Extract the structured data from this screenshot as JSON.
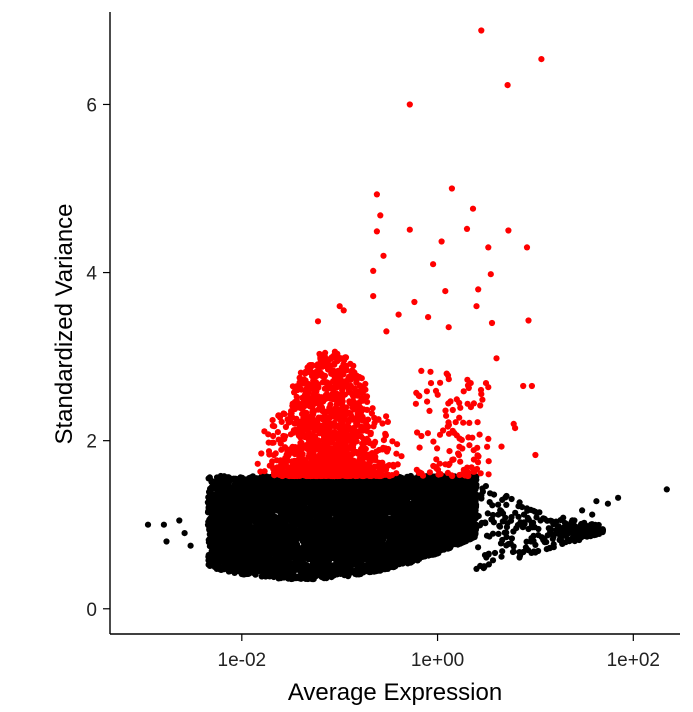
{
  "chart_data": {
    "type": "scatter",
    "title": "",
    "xlabel": "Average Expression",
    "ylabel": "Standardized Variance",
    "x_scale": "log10",
    "xlim": [
      0.00045,
      300
    ],
    "ylim": [
      -0.3,
      7.1
    ],
    "x_ticks": [
      0.01,
      1,
      100
    ],
    "x_tick_labels": [
      "1e-02",
      "1e+00",
      "1e+02"
    ],
    "y_ticks": [
      0,
      2,
      4,
      6
    ],
    "y_tick_labels": [
      "0",
      "2",
      "4",
      "6"
    ],
    "grid": false,
    "legend": "none",
    "colors": {
      "variable": "#ff0000",
      "non_variable": "#000000"
    },
    "series": [
      {
        "values": [
          {
            "x": 2.8,
            "y": 6.88
          },
          {
            "x": 11.5,
            "y": 6.54
          },
          {
            "x": 5.2,
            "y": 6.23
          },
          {
            "x": 0.52,
            "y": 6.0
          },
          {
            "x": 1.4,
            "y": 5.0
          },
          {
            "x": 2.3,
            "y": 4.76
          },
          {
            "x": 0.24,
            "y": 4.93
          },
          {
            "x": 0.26,
            "y": 4.68
          },
          {
            "x": 0.52,
            "y": 4.51
          },
          {
            "x": 2.0,
            "y": 4.52
          },
          {
            "x": 5.3,
            "y": 4.5
          },
          {
            "x": 0.24,
            "y": 4.49
          },
          {
            "x": 1.1,
            "y": 4.37
          },
          {
            "x": 3.3,
            "y": 4.3
          },
          {
            "x": 8.2,
            "y": 4.3
          },
          {
            "x": 0.28,
            "y": 4.2
          },
          {
            "x": 0.9,
            "y": 4.1
          },
          {
            "x": 0.22,
            "y": 4.02
          },
          {
            "x": 3.5,
            "y": 3.98
          },
          {
            "x": 2.6,
            "y": 3.8
          },
          {
            "x": 1.2,
            "y": 3.78
          },
          {
            "x": 0.22,
            "y": 3.72
          },
          {
            "x": 0.58,
            "y": 3.65
          },
          {
            "x": 2.5,
            "y": 3.6
          },
          {
            "x": 0.1,
            "y": 3.6
          },
          {
            "x": 0.11,
            "y": 3.55
          },
          {
            "x": 0.4,
            "y": 3.5
          },
          {
            "x": 0.8,
            "y": 3.47
          },
          {
            "x": 8.5,
            "y": 3.43
          },
          {
            "x": 0.06,
            "y": 3.42
          },
          {
            "x": 3.6,
            "y": 3.4
          },
          {
            "x": 1.3,
            "y": 3.35
          },
          {
            "x": 0.3,
            "y": 3.3
          },
          {
            "x": 4.0,
            "y": 2.98
          },
          {
            "x": 7.5,
            "y": 2.65
          },
          {
            "x": 9.2,
            "y": 2.65
          },
          {
            "x": 6.0,
            "y": 2.2
          },
          {
            "x": 6.2,
            "y": 2.15
          },
          {
            "x": 4.5,
            "y": 1.93
          },
          {
            "x": 10.0,
            "y": 1.83
          }
        ]
      },
      {
        "values": [
          {
            "x": 220,
            "y": 1.42
          },
          {
            "x": 70,
            "y": 1.32
          },
          {
            "x": 55,
            "y": 1.25
          },
          {
            "x": 42,
            "y": 1.28
          },
          {
            "x": 38,
            "y": 1.12
          },
          {
            "x": 30,
            "y": 1.17
          },
          {
            "x": 25,
            "y": 1.05
          },
          {
            "x": 22,
            "y": 0.98
          },
          {
            "x": 18,
            "y": 0.92
          },
          {
            "x": 15,
            "y": 0.88
          },
          {
            "x": 12,
            "y": 0.82
          },
          {
            "x": 10,
            "y": 0.76
          },
          {
            "x": 8,
            "y": 0.73
          },
          {
            "x": 6,
            "y": 0.68
          },
          {
            "x": 4.5,
            "y": 0.62
          },
          {
            "x": 14,
            "y": 0.95
          },
          {
            "x": 20,
            "y": 1.02
          },
          {
            "x": 9,
            "y": 0.8
          },
          {
            "x": 0.0011,
            "y": 1.0
          },
          {
            "x": 0.0016,
            "y": 1.0
          },
          {
            "x": 0.0017,
            "y": 0.8
          },
          {
            "x": 0.0023,
            "y": 1.05
          },
          {
            "x": 0.0026,
            "y": 0.9
          },
          {
            "x": 0.003,
            "y": 0.75
          }
        ]
      }
    ],
    "point_cloud": {
      "variable_band": {
        "x_range": [
          0.005,
          1.6
        ],
        "y_range": [
          1.58,
          3.2
        ],
        "peak_x": 0.08,
        "n": 1400
      },
      "non_variable_band": {
        "x_range": [
          0.0045,
          2.5
        ],
        "y_range": [
          0.28,
          1.58
        ],
        "n": 6000
      }
    }
  }
}
